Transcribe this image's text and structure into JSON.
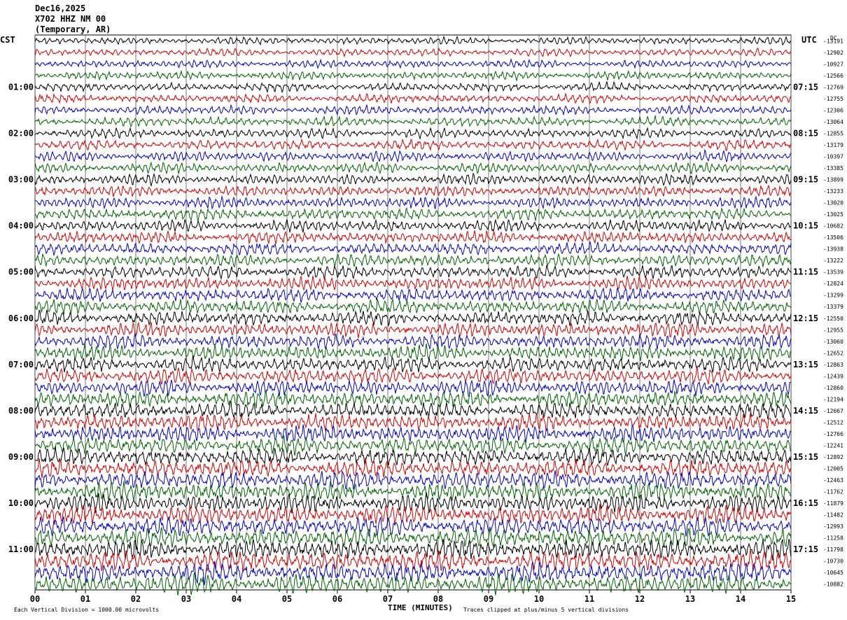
{
  "header": {
    "date": "Dec16,2025",
    "station": "X702 HHZ NM 00",
    "location": "(Temporary, AR)"
  },
  "left_tz": "CST",
  "right_tz": "UTC",
  "dc_label": "DC",
  "footer": {
    "scale_note": "Each Vertical Division = 1000.00 microvolts",
    "xlabel": "TIME (MINUTES)",
    "clip_note": "Traces clipped at plus/minus 5 vertical divisions"
  },
  "chart_data": {
    "type": "line",
    "title": "X702 HHZ NM 00",
    "xlabel": "TIME (MINUTES)",
    "x_ticks": [
      "00",
      "01",
      "02",
      "03",
      "04",
      "05",
      "06",
      "07",
      "08",
      "09",
      "10",
      "11",
      "12",
      "13",
      "14",
      "15"
    ],
    "xlim": [
      0,
      15
    ],
    "grid": true,
    "trace_colors": [
      "#000000",
      "#d40000",
      "#0000c8",
      "#006400"
    ],
    "left_hour_labels": [
      "01:00",
      "02:00",
      "03:00",
      "04:00",
      "05:00",
      "06:00",
      "07:00",
      "08:00",
      "09:00",
      "10:00",
      "11:00"
    ],
    "right_hour_labels": [
      "07:15",
      "08:15",
      "09:15",
      "10:15",
      "11:15",
      "12:15",
      "13:15",
      "14:15",
      "15:15",
      "16:15",
      "17:15"
    ],
    "dc_offsets": [
      "-13191",
      "-12902",
      "-10927",
      "-12566",
      "-12769",
      "-12755",
      "-12306",
      "-13064",
      "-12855",
      "-13179",
      "-10397",
      "-13385",
      "-13899",
      "-13233",
      "-13020",
      "-13025",
      "-10682",
      "-13506",
      "-13938",
      "-13222",
      "-13539",
      "-12824",
      "-13299",
      "-13379",
      "-12550",
      "-12955",
      "-13060",
      "-12652",
      "-12863",
      "-12439",
      "-12860",
      "-12194",
      "-12667",
      "-12512",
      "-12766",
      "-12241",
      "-12892",
      "-12005",
      "-12463",
      "-11762",
      "-11879",
      "-11482",
      "-12993",
      "-11258",
      "-11798",
      "-10730",
      "-10645",
      "-10882"
    ]
  }
}
